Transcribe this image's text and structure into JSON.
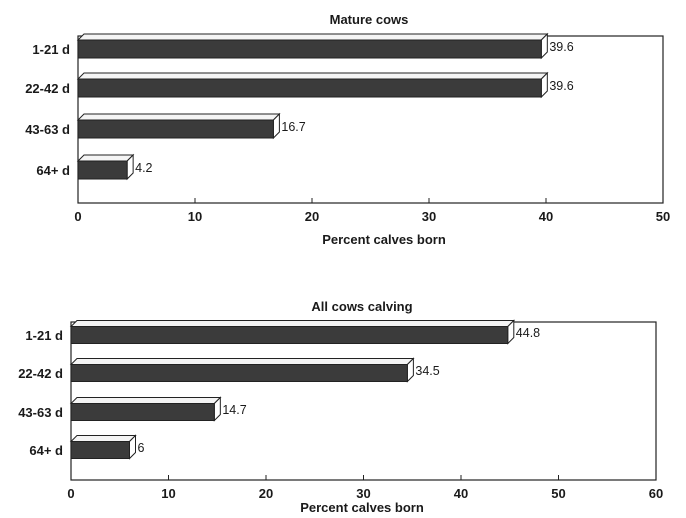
{
  "chart_data": [
    {
      "type": "bar",
      "orientation": "horizontal",
      "style": "3d",
      "title": "Mature cows",
      "xlabel": "Percent calves born",
      "ylabel": "",
      "categories": [
        "1-21 d",
        "22-42 d",
        "43-63 d",
        "64+ d"
      ],
      "values": [
        39.6,
        39.6,
        16.7,
        4.2
      ],
      "data_labels": [
        "39.6",
        "39.6",
        "16.7",
        "4.2"
      ],
      "xlim": [
        0,
        50
      ],
      "xticks": [
        0,
        10,
        20,
        30,
        40,
        50
      ],
      "grid": false,
      "colors": {
        "bar_front": "#3b3b3b",
        "bar_top": "#f4f4f4",
        "bar_side": "#ffffff",
        "frame": "#222222"
      }
    },
    {
      "type": "bar",
      "orientation": "horizontal",
      "style": "3d",
      "title": "All cows calving",
      "xlabel": "Percent calves born",
      "ylabel": "",
      "categories": [
        "1-21 d",
        "22-42 d",
        "43-63 d",
        "64+ d"
      ],
      "values": [
        44.8,
        34.5,
        14.7,
        6
      ],
      "data_labels": [
        "44.8",
        "34.5",
        "14.7",
        "6"
      ],
      "xlim": [
        0,
        60
      ],
      "xticks": [
        0,
        10,
        20,
        30,
        40,
        50,
        60
      ],
      "grid": false,
      "colors": {
        "bar_front": "#3b3b3b",
        "bar_top": "#f4f4f4",
        "bar_side": "#ffffff",
        "frame": "#222222"
      }
    }
  ]
}
